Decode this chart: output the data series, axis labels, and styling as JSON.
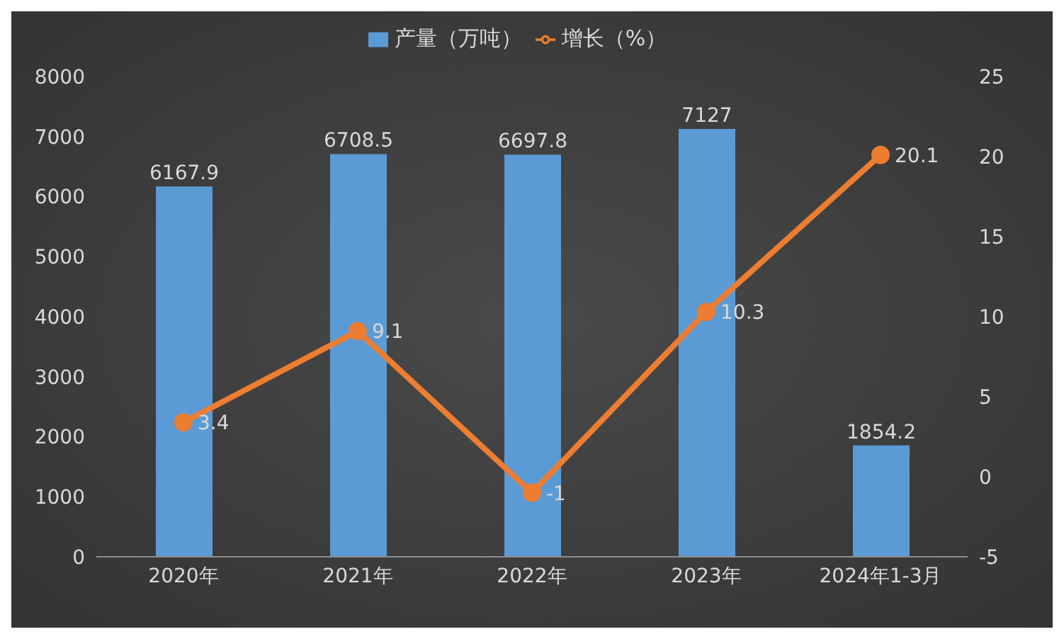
{
  "chart_data": {
    "type": "bar",
    "categories": [
      "2020年",
      "2021年",
      "2022年",
      "2023年",
      "2024年1-3月"
    ],
    "series": [
      {
        "name": "产量（万吨）",
        "color": "#5b9bd5",
        "values": [
          6167.9,
          6708.5,
          6697.8,
          7127,
          1854.2
        ]
      },
      {
        "name": "增长（%）",
        "type": "line",
        "axis": "y2",
        "color": "#ed7d31",
        "values": [
          3.4,
          9.1,
          -1,
          10.3,
          20.1
        ]
      }
    ],
    "ylim": [
      0,
      8000
    ],
    "yticks": [
      0,
      1000,
      2000,
      3000,
      4000,
      5000,
      6000,
      7000,
      8000
    ],
    "y2lim": [
      -5,
      25
    ],
    "y2ticks": [
      -5,
      0,
      5,
      10,
      15,
      20,
      25
    ],
    "data_labels": true,
    "legend": "top",
    "marker": "circle"
  }
}
